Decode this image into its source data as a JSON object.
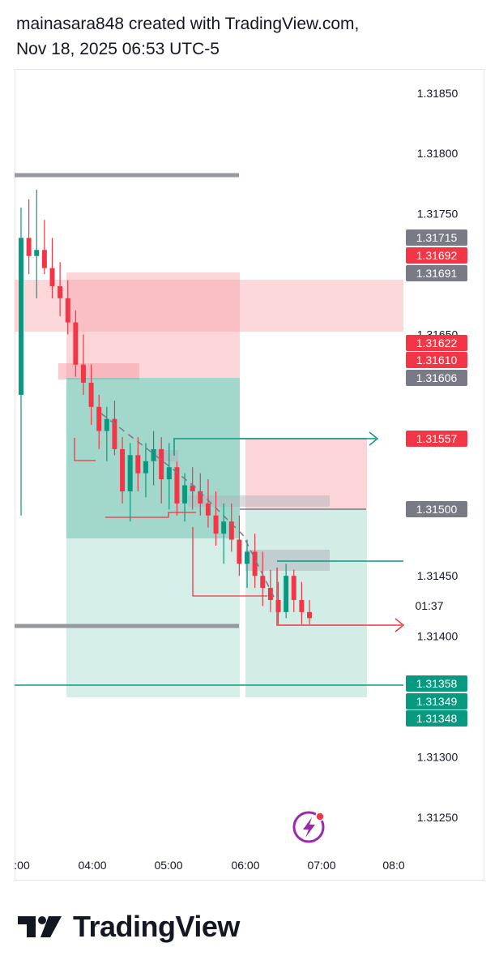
{
  "header": {
    "line1": "mainasara848 created with TradingView.com,",
    "line2": "Nov 18, 2025 06:53 UTC-5"
  },
  "footer": {
    "brand": "TradingView"
  },
  "chart_data": {
    "type": "candlestick",
    "y_axis": {
      "range": [
        1.31215,
        1.3187
      ],
      "ticks": [
        "1.31850",
        "1.31800",
        "1.31750",
        "1.31650",
        "1.31450",
        "1.31400",
        "1.31300",
        "1.31250"
      ]
    },
    "x_axis": {
      "ticks": [
        ":00",
        "04:00",
        "05:00",
        "06:00",
        "07:00",
        "08:0"
      ]
    },
    "countdown": "01:37",
    "price_labels": [
      {
        "text": "1.31715",
        "color": "#787b86"
      },
      {
        "text": "1.31692",
        "color": "#f23645"
      },
      {
        "text": "1.31691",
        "color": "#787b86"
      },
      {
        "text": "1.31622",
        "color": "#f23645"
      },
      {
        "text": "1.31610",
        "color": "#f23645"
      },
      {
        "text": "1.31606",
        "color": "#787b86"
      },
      {
        "text": "1.31557",
        "color": "#f23645"
      },
      {
        "text": "1.31500",
        "color": "#787b86"
      },
      {
        "text": "1.31358",
        "color": "#089981"
      },
      {
        "text": "1.31349",
        "color": "#089981"
      },
      {
        "text": "1.31348",
        "color": "#089981"
      }
    ],
    "colors": {
      "up": "#089981",
      "down": "#f23645"
    },
    "candles_ohlc": [
      [
        1.316,
        1.31755,
        1.315,
        1.3173
      ],
      [
        1.3173,
        1.31762,
        1.317,
        1.31715
      ],
      [
        1.31715,
        1.3177,
        1.3168,
        1.3172
      ],
      [
        1.3172,
        1.31745,
        1.317,
        1.31705
      ],
      [
        1.31705,
        1.3173,
        1.3168,
        1.3169
      ],
      [
        1.3169,
        1.3171,
        1.31665,
        1.3168
      ],
      [
        1.3168,
        1.31695,
        1.3165,
        1.3166
      ],
      [
        1.3166,
        1.3167,
        1.31615,
        1.31625
      ],
      [
        1.31625,
        1.3165,
        1.316,
        1.3161
      ],
      [
        1.3161,
        1.31625,
        1.31575,
        1.3159
      ],
      [
        1.3159,
        1.316,
        1.31555,
        1.3157
      ],
      [
        1.3157,
        1.3159,
        1.31545,
        1.3158
      ],
      [
        1.3158,
        1.31595,
        1.3155,
        1.31555
      ],
      [
        1.31555,
        1.31565,
        1.3151,
        1.3152
      ],
      [
        1.3152,
        1.3156,
        1.31495,
        1.3155
      ],
      [
        1.3155,
        1.31565,
        1.3152,
        1.31535
      ],
      [
        1.31535,
        1.3156,
        1.31515,
        1.31545
      ],
      [
        1.31545,
        1.3157,
        1.31525,
        1.31555
      ],
      [
        1.31555,
        1.31565,
        1.3151,
        1.3153
      ],
      [
        1.3153,
        1.3156,
        1.31505,
        1.3154
      ],
      [
        1.3154,
        1.31545,
        1.315,
        1.3151
      ],
      [
        1.3151,
        1.31535,
        1.31495,
        1.31525
      ],
      [
        1.31525,
        1.3154,
        1.31505,
        1.3152
      ],
      [
        1.3152,
        1.31535,
        1.315,
        1.3151
      ],
      [
        1.3151,
        1.3153,
        1.3149,
        1.315
      ],
      [
        1.315,
        1.3152,
        1.31475,
        1.31485
      ],
      [
        1.31485,
        1.3151,
        1.3146,
        1.31495
      ],
      [
        1.31495,
        1.3151,
        1.3147,
        1.3148
      ],
      [
        1.3148,
        1.315,
        1.3145,
        1.3146
      ],
      [
        1.3146,
        1.3148,
        1.3144,
        1.3147
      ],
      [
        1.3147,
        1.31485,
        1.3144,
        1.3145
      ],
      [
        1.3145,
        1.3147,
        1.31425,
        1.3144
      ],
      [
        1.3144,
        1.31455,
        1.3142,
        1.3143
      ],
      [
        1.3143,
        1.31445,
        1.3141,
        1.3142
      ],
      [
        1.3142,
        1.3146,
        1.31415,
        1.3145
      ],
      [
        1.3145,
        1.31455,
        1.3142,
        1.3143
      ],
      [
        1.3143,
        1.31445,
        1.3141,
        1.3142
      ],
      [
        1.3142,
        1.3143,
        1.3141,
        1.31415
      ]
    ]
  }
}
